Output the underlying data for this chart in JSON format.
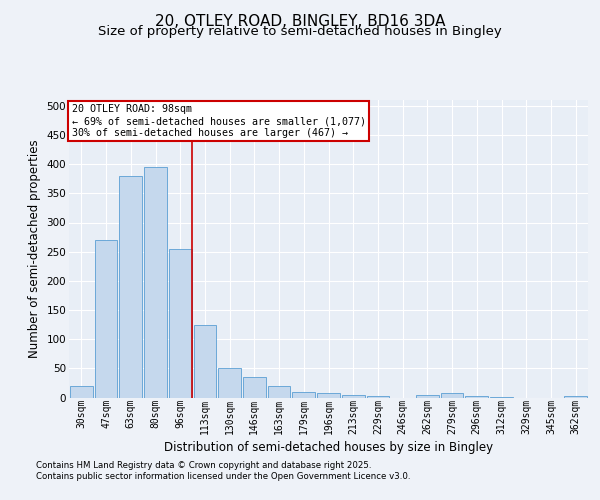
{
  "title1": "20, OTLEY ROAD, BINGLEY, BD16 3DA",
  "title2": "Size of property relative to semi-detached houses in Bingley",
  "xlabel": "Distribution of semi-detached houses by size in Bingley",
  "ylabel": "Number of semi-detached properties",
  "categories": [
    "30sqm",
    "47sqm",
    "63sqm",
    "80sqm",
    "96sqm",
    "113sqm",
    "130sqm",
    "146sqm",
    "163sqm",
    "179sqm",
    "196sqm",
    "213sqm",
    "229sqm",
    "246sqm",
    "262sqm",
    "279sqm",
    "296sqm",
    "312sqm",
    "329sqm",
    "345sqm",
    "362sqm"
  ],
  "values": [
    20,
    270,
    380,
    395,
    255,
    125,
    50,
    35,
    20,
    10,
    7,
    5,
    3,
    0,
    5,
    7,
    2,
    1,
    0,
    0,
    2
  ],
  "bar_color": "#c5d8ed",
  "bar_edge_color": "#5a9fd4",
  "vline_color": "#cc0000",
  "annotation_title": "20 OTLEY ROAD: 98sqm",
  "annotation_line1": "← 69% of semi-detached houses are smaller (1,077)",
  "annotation_line2": "30% of semi-detached houses are larger (467) →",
  "annotation_box_color": "#ffffff",
  "annotation_box_edge": "#cc0000",
  "ylim": [
    0,
    510
  ],
  "yticks": [
    0,
    50,
    100,
    150,
    200,
    250,
    300,
    350,
    400,
    450,
    500
  ],
  "footnote1": "Contains HM Land Registry data © Crown copyright and database right 2025.",
  "footnote2": "Contains public sector information licensed under the Open Government Licence v3.0.",
  "background_color": "#eef2f8",
  "plot_bg_color": "#e8eef6",
  "grid_color": "#ffffff",
  "title_fontsize": 11,
  "subtitle_fontsize": 9.5,
  "tick_fontsize": 7,
  "ylabel_fontsize": 8.5,
  "xlabel_fontsize": 8.5,
  "footnote_fontsize": 6.2
}
